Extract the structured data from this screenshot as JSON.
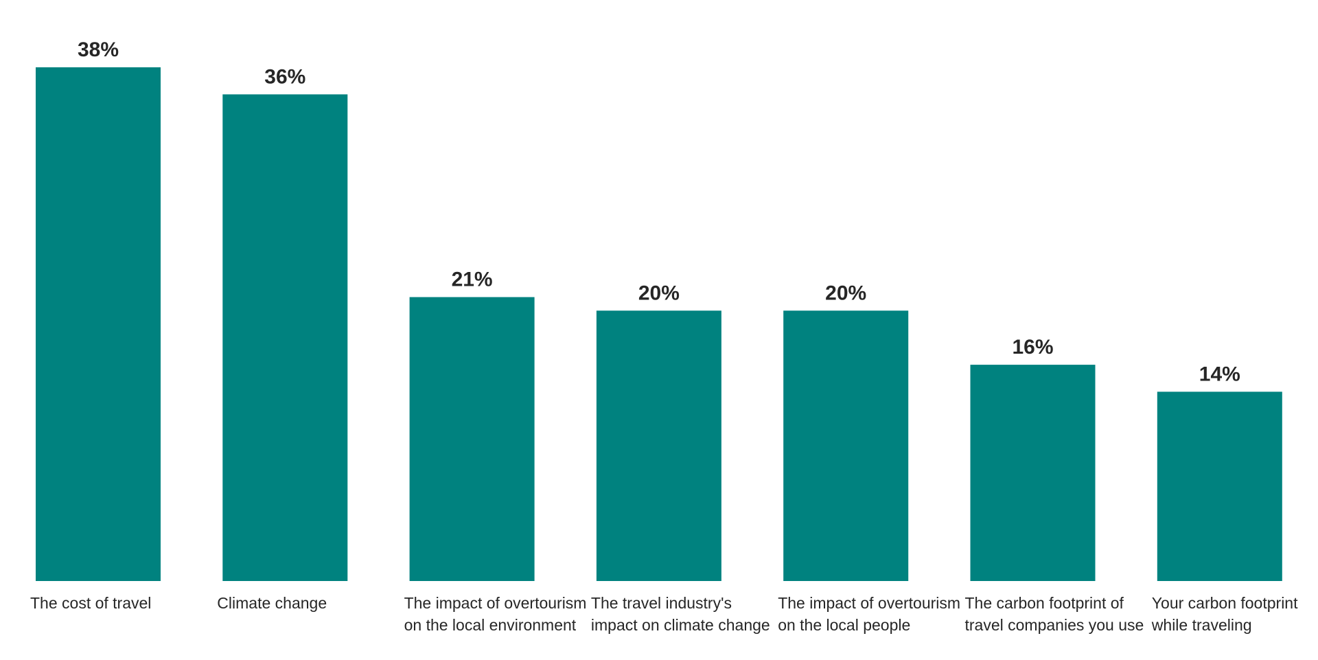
{
  "chart_data": {
    "type": "bar",
    "categories": [
      "The cost of travel",
      "Climate change",
      "The impact of overtourism on the local environment",
      "The travel industry's impact on climate change",
      "The impact of overtourism on the local people",
      "The carbon footprint of travel companies you use",
      "Your carbon footprint while traveling"
    ],
    "values": [
      38,
      36,
      21,
      20,
      20,
      16,
      14
    ],
    "value_labels": [
      "38%",
      "36%",
      "21%",
      "20%",
      "20%",
      "16%",
      "14%"
    ],
    "title": "",
    "xlabel": "",
    "ylabel": "",
    "ylim": [
      0,
      38
    ],
    "grid": false,
    "legend": "none",
    "bar_color": "#00827F"
  }
}
